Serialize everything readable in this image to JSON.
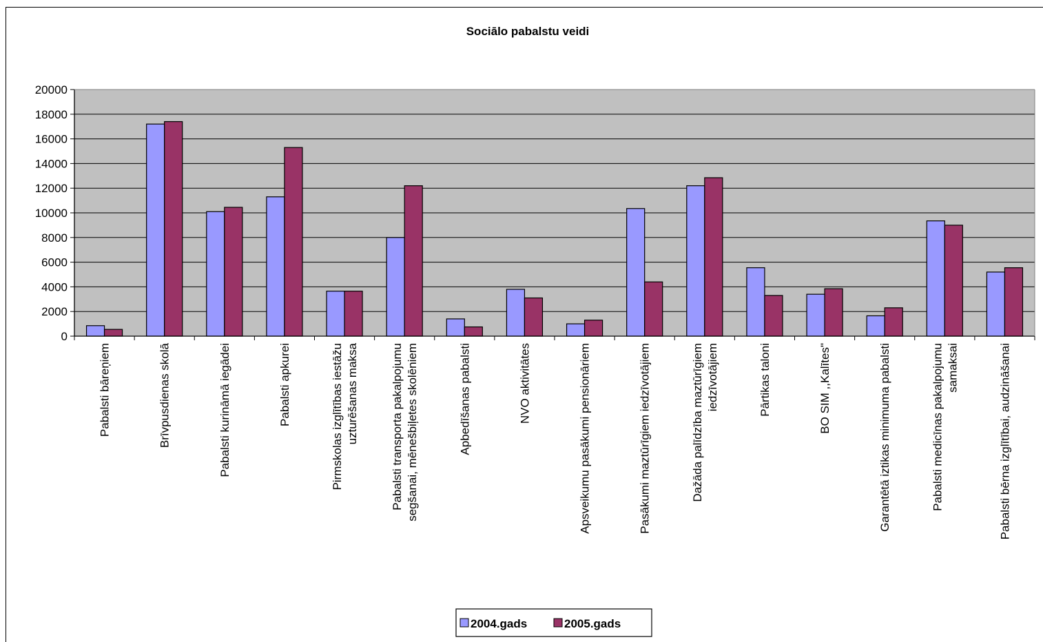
{
  "chart_data": {
    "type": "bar",
    "title": "Sociālo pabalstu veidi",
    "xlabel": "",
    "ylabel": "",
    "ylim": [
      0,
      20000
    ],
    "yticks": [
      0,
      2000,
      4000,
      6000,
      8000,
      10000,
      12000,
      14000,
      16000,
      18000,
      20000
    ],
    "grid": true,
    "legend_position": "bottom",
    "colors": [
      "#9999ff",
      "#993366"
    ],
    "plot_background": "#c0c0c0",
    "categories": [
      [
        "Pabalsti bāreņiem"
      ],
      [
        "Brīvpusdienas skolā"
      ],
      [
        "Pabalsti kurināmā iegādei"
      ],
      [
        "Pabalsti apkurei"
      ],
      [
        "Pirmskolas izglītības iestāžu",
        "uzturēšanas maksa"
      ],
      [
        "Pabalsti transporta pakalpojumu",
        "segšanai, mēnešbiļetes skolēniem"
      ],
      [
        "Apbedīšanas pabalsti"
      ],
      [
        "NVO aktivitātes"
      ],
      [
        "Apsveikumu pasākumi pensionāriem"
      ],
      [
        "Pasākumi maztūrīgiem iedzīvotājiem"
      ],
      [
        "Dažāda palīdzība maztūrīgiem",
        "iedzīvotājiem"
      ],
      [
        "Pārtikas taloni"
      ],
      [
        "BO SIM ,,Kalītes\""
      ],
      [
        "Garantētā iztikas minimuma pabalsti"
      ],
      [
        "Pabalsti medicīnas pakalpojumu",
        "samaksai"
      ],
      [
        "Pabalsti bērna izglītībai, audzināšanai"
      ]
    ],
    "series": [
      {
        "name": "2004.gads",
        "values": [
          850,
          17200,
          10100,
          11300,
          3650,
          8000,
          1400,
          3800,
          1000,
          10350,
          12200,
          5550,
          3400,
          1650,
          9350,
          5200
        ]
      },
      {
        "name": "2005.gads",
        "values": [
          550,
          17400,
          10450,
          15300,
          3650,
          12200,
          750,
          3100,
          1300,
          4400,
          12850,
          3300,
          3850,
          2300,
          9000,
          5550
        ]
      }
    ]
  }
}
